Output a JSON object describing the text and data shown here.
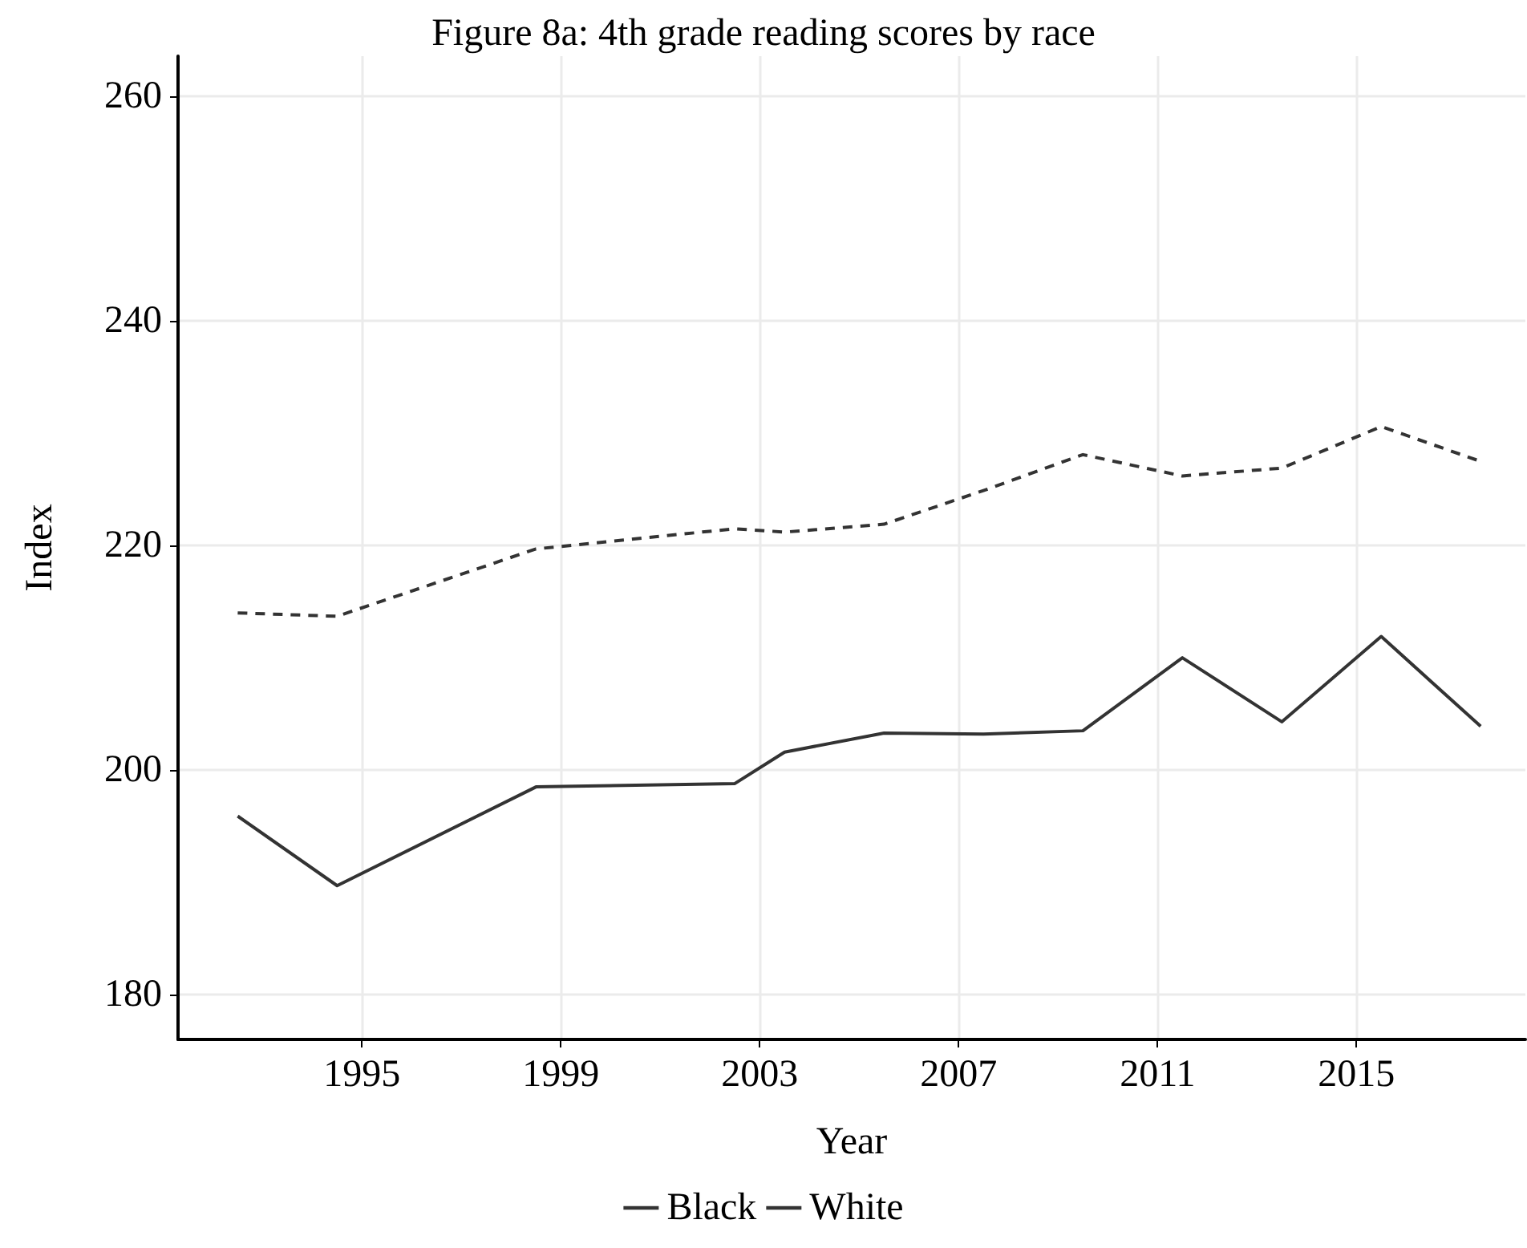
{
  "chart_data": {
    "type": "line",
    "title": "Figure 8a: 4th grade reading scores by race",
    "xlabel": "Year",
    "ylabel": "Index",
    "x": [
      1992.5,
      1994.5,
      1998.5,
      2002.5,
      2003.5,
      2005.5,
      2007.5,
      2009.5,
      2011.5,
      2013.5,
      2015.5,
      2017.5
    ],
    "series": [
      {
        "name": "Black",
        "color": "#333333",
        "line_style": "solid",
        "values": [
          195.9,
          189.7,
          198.5,
          198.8,
          201.6,
          203.3,
          203.2,
          203.5,
          210.0,
          204.3,
          211.9,
          203.9
        ]
      },
      {
        "name": "White",
        "color": "#333333",
        "line_style": "dashed",
        "values": [
          214.0,
          213.7,
          219.7,
          221.5,
          221.2,
          221.9,
          224.9,
          228.1,
          226.2,
          226.9,
          230.6,
          227.5
        ]
      }
    ],
    "xlim": [
      1991.3,
      2018.4
    ],
    "xticks": [
      1995,
      1999,
      2003,
      2007,
      2011,
      2015
    ],
    "ylim": [
      176,
      263.6
    ],
    "yticks": [
      180,
      200,
      220,
      240,
      260
    ],
    "grid": true,
    "legend": "bottom",
    "marker": "none"
  }
}
